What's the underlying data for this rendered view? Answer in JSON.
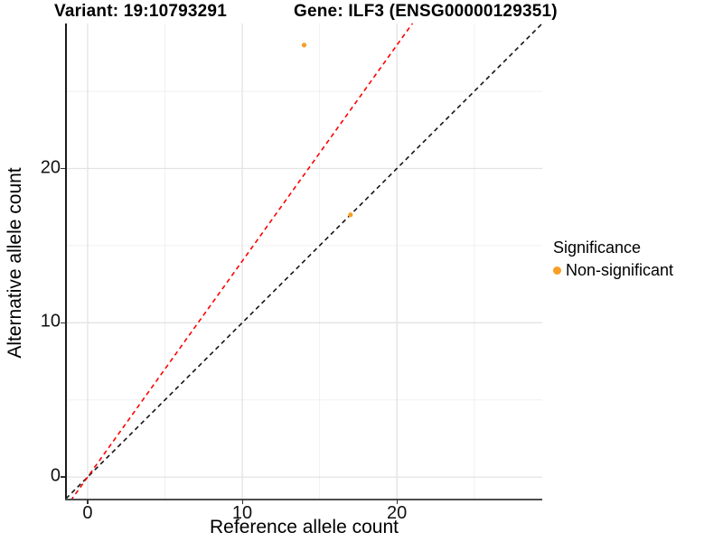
{
  "titles": {
    "variant": "Variant: 19:10793291",
    "gene": "Gene: ILF3 (ENSG00000129351)"
  },
  "axes": {
    "x_label": "Reference allele count",
    "y_label": "Alternative allele count"
  },
  "legend": {
    "title": "Significance",
    "items": [
      {
        "label": "Non-significant",
        "color": "#F89E24"
      }
    ]
  },
  "colors": {
    "point_orange": "#F89E24",
    "line_red": "#FF0000",
    "line_black": "#141414",
    "grid_major": "#E3E3E3",
    "grid_minor": "#F0F0F0",
    "axis_line": "#1a1a1a"
  },
  "chart_data": {
    "type": "scatter",
    "title": "Variant: 19:10793291    Gene: ILF3 (ENSG00000129351)",
    "xlabel": "Reference allele count",
    "ylabel": "Alternative allele count",
    "xlim": [
      -1.4,
      29.4
    ],
    "ylim": [
      -1.4,
      29.4
    ],
    "x_major_ticks": [
      0,
      10,
      20
    ],
    "y_major_ticks": [
      0,
      10,
      20
    ],
    "x_minor_gridlines": [
      5,
      15,
      25
    ],
    "y_minor_gridlines": [
      5,
      15,
      25
    ],
    "grid": true,
    "aspect": "fixed",
    "legend_position": "right",
    "series": [
      {
        "name": "Non-significant",
        "type": "points",
        "color": "#F89E24",
        "point_radius": 2.6,
        "points": [
          [
            14,
            28
          ],
          [
            17,
            17
          ]
        ]
      }
    ],
    "reference_lines": [
      {
        "name": "identity-1-to-1",
        "slope": 1.0,
        "intercept": 0,
        "color": "#141414",
        "style": "dashed"
      },
      {
        "name": "expected-ratio",
        "slope": 1.4,
        "intercept": 0,
        "color": "#FF0000",
        "style": "dashed"
      }
    ]
  }
}
